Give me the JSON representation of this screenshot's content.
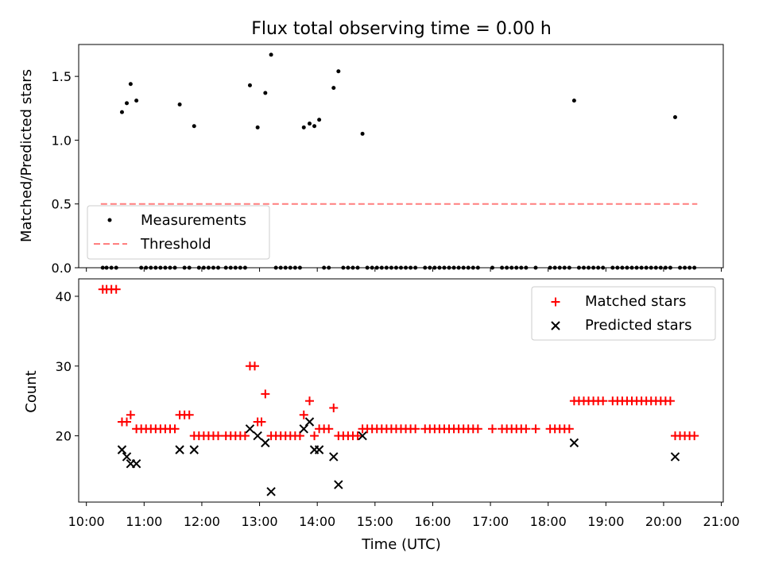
{
  "chart_data": [
    {
      "type": "scatter",
      "title": "Flux total observing time = 0.00 h",
      "xlabel": "",
      "ylabel": "Matched/Predicted stars",
      "xlim": [
        "09:52",
        "21:02"
      ],
      "ylim": [
        0,
        1.75
      ],
      "yticks": [
        0.0,
        0.5,
        1.0,
        1.5
      ],
      "ytick_labels": [
        "0.0",
        "0.5",
        "1.0",
        "1.5"
      ],
      "threshold": {
        "value": 0.5,
        "x_start": "10:15",
        "x_end": "20:35",
        "color": "#ff7f7f",
        "style": "dashed"
      },
      "legend": {
        "position": "lower-left",
        "entries": [
          "Measurements",
          "Threshold"
        ]
      },
      "series": [
        {
          "name": "Measurements",
          "marker": "dot",
          "color": "#000000",
          "points": [
            [
              "10:37",
              1.22
            ],
            [
              "10:42",
              1.29
            ],
            [
              "10:46",
              1.44
            ],
            [
              "10:52",
              1.31
            ],
            [
              "11:37",
              1.28
            ],
            [
              "11:52",
              1.11
            ],
            [
              "12:50",
              1.43
            ],
            [
              "12:58",
              1.1
            ],
            [
              "13:06",
              1.37
            ],
            [
              "13:12",
              1.67
            ],
            [
              "13:46",
              1.1
            ],
            [
              "13:52",
              1.13
            ],
            [
              "13:57",
              1.11
            ],
            [
              "14:02",
              1.16
            ],
            [
              "14:17",
              1.41
            ],
            [
              "14:22",
              1.54
            ],
            [
              "14:47",
              1.05
            ],
            [
              "18:27",
              1.31
            ],
            [
              "20:12",
              1.18
            ]
          ],
          "zero_value_times": [
            "10:17",
            "10:21",
            "10:26",
            "10:31",
            "10:57",
            "11:02",
            "11:07",
            "11:12",
            "11:17",
            "11:22",
            "11:27",
            "11:32",
            "11:42",
            "11:47",
            "11:57",
            "12:02",
            "12:07",
            "12:12",
            "12:17",
            "12:25",
            "12:30",
            "12:35",
            "12:40",
            "12:45",
            "13:17",
            "13:22",
            "13:27",
            "13:32",
            "13:37",
            "13:42",
            "14:07",
            "14:12",
            "14:27",
            "14:32",
            "14:37",
            "14:42",
            "14:52",
            "14:57",
            "15:02",
            "15:07",
            "15:12",
            "15:17",
            "15:22",
            "15:27",
            "15:32",
            "15:37",
            "15:42",
            "15:52",
            "15:57",
            "16:02",
            "16:07",
            "16:12",
            "16:17",
            "16:22",
            "16:27",
            "16:32",
            "16:37",
            "16:42",
            "16:47",
            "17:02",
            "17:12",
            "17:17",
            "17:22",
            "17:27",
            "17:32",
            "17:37",
            "17:47",
            "18:02",
            "18:07",
            "18:12",
            "18:17",
            "18:22",
            "18:32",
            "18:37",
            "18:42",
            "18:47",
            "18:52",
            "18:57",
            "19:07",
            "19:12",
            "19:17",
            "19:22",
            "19:27",
            "19:32",
            "19:37",
            "19:42",
            "19:47",
            "19:52",
            "19:57",
            "20:02",
            "20:07",
            "20:17",
            "20:22",
            "20:27",
            "20:32"
          ]
        }
      ]
    },
    {
      "type": "scatter",
      "title": "",
      "xlabel": "Time (UTC)",
      "ylabel": "Count",
      "xlim": [
        "09:52",
        "21:02"
      ],
      "ylim": [
        10.5,
        42.5
      ],
      "yticks": [
        20,
        30,
        40
      ],
      "ytick_labels": [
        "20",
        "30",
        "40"
      ],
      "xticks": [
        "10:00",
        "11:00",
        "12:00",
        "13:00",
        "14:00",
        "15:00",
        "16:00",
        "17:00",
        "18:00",
        "19:00",
        "20:00",
        "21:00"
      ],
      "legend": {
        "position": "upper-right",
        "entries": [
          "Matched stars",
          "Predicted stars"
        ]
      },
      "series": [
        {
          "name": "Matched stars",
          "marker": "plus",
          "color": "#ff0000",
          "points": [
            [
              "10:17",
              41
            ],
            [
              "10:21",
              41
            ],
            [
              "10:26",
              41
            ],
            [
              "10:31",
              41
            ],
            [
              "10:37",
              22
            ],
            [
              "10:42",
              22
            ],
            [
              "10:46",
              23
            ],
            [
              "10:52",
              21
            ],
            [
              "10:57",
              21
            ],
            [
              "11:02",
              21
            ],
            [
              "11:07",
              21
            ],
            [
              "11:12",
              21
            ],
            [
              "11:17",
              21
            ],
            [
              "11:22",
              21
            ],
            [
              "11:27",
              21
            ],
            [
              "11:32",
              21
            ],
            [
              "11:37",
              23
            ],
            [
              "11:42",
              23
            ],
            [
              "11:47",
              23
            ],
            [
              "11:52",
              20
            ],
            [
              "11:57",
              20
            ],
            [
              "12:02",
              20
            ],
            [
              "12:07",
              20
            ],
            [
              "12:12",
              20
            ],
            [
              "12:17",
              20
            ],
            [
              "12:25",
              20
            ],
            [
              "12:30",
              20
            ],
            [
              "12:35",
              20
            ],
            [
              "12:40",
              20
            ],
            [
              "12:45",
              20
            ],
            [
              "12:50",
              30
            ],
            [
              "12:55",
              30
            ],
            [
              "12:58",
              22
            ],
            [
              "13:02",
              22
            ],
            [
              "13:06",
              26
            ],
            [
              "13:12",
              20
            ],
            [
              "13:17",
              20
            ],
            [
              "13:22",
              20
            ],
            [
              "13:27",
              20
            ],
            [
              "13:32",
              20
            ],
            [
              "13:37",
              20
            ],
            [
              "13:42",
              20
            ],
            [
              "13:46",
              23
            ],
            [
              "13:52",
              25
            ],
            [
              "13:57",
              20
            ],
            [
              "14:02",
              21
            ],
            [
              "14:07",
              21
            ],
            [
              "14:12",
              21
            ],
            [
              "14:17",
              24
            ],
            [
              "14:22",
              20
            ],
            [
              "14:27",
              20
            ],
            [
              "14:32",
              20
            ],
            [
              "14:37",
              20
            ],
            [
              "14:42",
              20
            ],
            [
              "14:47",
              21
            ],
            [
              "14:52",
              21
            ],
            [
              "14:57",
              21
            ],
            [
              "15:02",
              21
            ],
            [
              "15:07",
              21
            ],
            [
              "15:12",
              21
            ],
            [
              "15:17",
              21
            ],
            [
              "15:22",
              21
            ],
            [
              "15:27",
              21
            ],
            [
              "15:32",
              21
            ],
            [
              "15:37",
              21
            ],
            [
              "15:42",
              21
            ],
            [
              "15:52",
              21
            ],
            [
              "15:57",
              21
            ],
            [
              "16:02",
              21
            ],
            [
              "16:07",
              21
            ],
            [
              "16:12",
              21
            ],
            [
              "16:17",
              21
            ],
            [
              "16:22",
              21
            ],
            [
              "16:27",
              21
            ],
            [
              "16:32",
              21
            ],
            [
              "16:37",
              21
            ],
            [
              "16:42",
              21
            ],
            [
              "16:47",
              21
            ],
            [
              "17:02",
              21
            ],
            [
              "17:12",
              21
            ],
            [
              "17:17",
              21
            ],
            [
              "17:22",
              21
            ],
            [
              "17:27",
              21
            ],
            [
              "17:32",
              21
            ],
            [
              "17:37",
              21
            ],
            [
              "17:47",
              21
            ],
            [
              "18:02",
              21
            ],
            [
              "18:07",
              21
            ],
            [
              "18:12",
              21
            ],
            [
              "18:17",
              21
            ],
            [
              "18:22",
              21
            ],
            [
              "18:27",
              25
            ],
            [
              "18:32",
              25
            ],
            [
              "18:37",
              25
            ],
            [
              "18:42",
              25
            ],
            [
              "18:47",
              25
            ],
            [
              "18:52",
              25
            ],
            [
              "18:57",
              25
            ],
            [
              "19:07",
              25
            ],
            [
              "19:12",
              25
            ],
            [
              "19:17",
              25
            ],
            [
              "19:22",
              25
            ],
            [
              "19:27",
              25
            ],
            [
              "19:32",
              25
            ],
            [
              "19:37",
              25
            ],
            [
              "19:42",
              25
            ],
            [
              "19:47",
              25
            ],
            [
              "19:52",
              25
            ],
            [
              "19:57",
              25
            ],
            [
              "20:02",
              25
            ],
            [
              "20:07",
              25
            ],
            [
              "20:12",
              20
            ],
            [
              "20:17",
              20
            ],
            [
              "20:22",
              20
            ],
            [
              "20:27",
              20
            ],
            [
              "20:32",
              20
            ]
          ]
        },
        {
          "name": "Predicted stars",
          "marker": "x",
          "color": "#000000",
          "points": [
            [
              "10:37",
              18
            ],
            [
              "10:42",
              17
            ],
            [
              "10:46",
              16
            ],
            [
              "10:52",
              16
            ],
            [
              "11:37",
              18
            ],
            [
              "11:52",
              18
            ],
            [
              "12:50",
              21
            ],
            [
              "12:58",
              20
            ],
            [
              "13:06",
              19
            ],
            [
              "13:12",
              12
            ],
            [
              "13:46",
              21
            ],
            [
              "13:52",
              22
            ],
            [
              "13:57",
              18
            ],
            [
              "14:02",
              18
            ],
            [
              "14:17",
              17
            ],
            [
              "14:22",
              13
            ],
            [
              "14:47",
              20
            ],
            [
              "18:27",
              19
            ],
            [
              "20:12",
              17
            ]
          ]
        }
      ]
    }
  ]
}
